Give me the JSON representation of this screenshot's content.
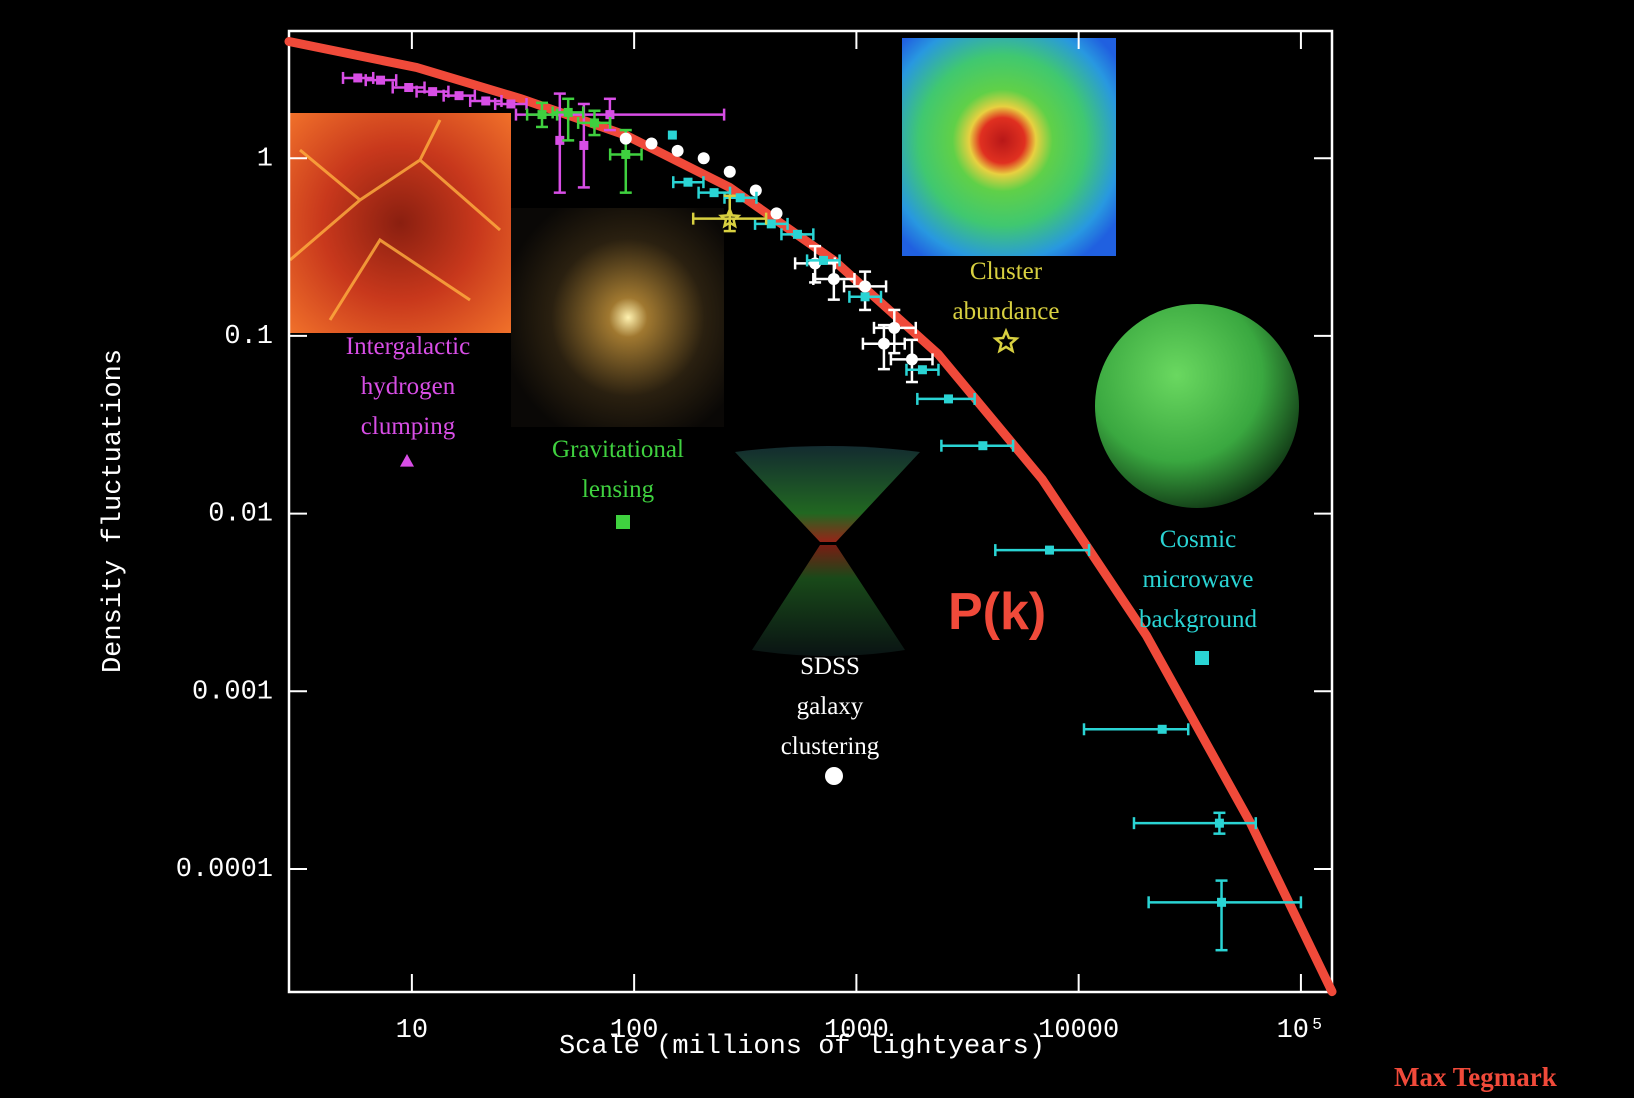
{
  "chart_data": {
    "type": "scatter",
    "x_label": "Scale (millions of lightyears)",
    "y_label": "Density fluctuations",
    "annotation": "Max Tegmark",
    "background": "#000000",
    "xscale": "log",
    "yscale": "log",
    "xlim": [
      2.8,
      138000
    ],
    "ylim": [
      2.03e-05,
      5.2
    ],
    "xticks": [
      10,
      100,
      1000,
      10000,
      {
        "value": 100000,
        "label": "10⁵"
      }
    ],
    "yticks": [
      1,
      0.1,
      0.01,
      0.001,
      0.0001
    ],
    "series": [
      {
        "name": "P(k)",
        "type": "line",
        "color": "#f04a3a",
        "x": [
          2.8,
          10.5,
          31,
          91.4,
          269,
          792,
          2333,
          6858,
          20180,
          59400,
          138000
        ],
        "values": [
          4.54,
          3.24,
          2.16,
          1.35,
          0.685,
          0.266,
          0.079,
          0.0156,
          0.00206,
          0.000181,
          2.04e-05
        ]
      },
      {
        "name": "Intergalactic hydrogen clumping",
        "marker": "triangle",
        "color": "#d84ee6",
        "x": [
          5.71,
          7.23,
          9.68,
          12.4,
          16.3,
          21.5,
          27.9,
          46.3,
          59.4,
          77.8
        ],
        "values": [
          2.83,
          2.75,
          2.5,
          2.37,
          2.25,
          2.1,
          2.02,
          1.26,
          1.18,
          1.76
        ],
        "x_low": [
          4.9,
          6.2,
          8.2,
          10.5,
          13.9,
          18.3,
          23.7,
          null,
          null,
          29.4
        ],
        "x_high": [
          6.7,
          8.5,
          11.4,
          14.6,
          19.2,
          25.3,
          32.8,
          null,
          null,
          254
        ],
        "y_low": [
          null,
          null,
          null,
          null,
          null,
          null,
          null,
          0.64,
          0.685,
          1.44
        ],
        "y_high": [
          null,
          null,
          null,
          null,
          null,
          null,
          null,
          2.31,
          2.02,
          2.16
        ]
      },
      {
        "name": "Gravitational lensing",
        "marker": "square",
        "color": "#3fd13f",
        "x": [
          38.5,
          50.5,
          66.3,
          91.7
        ],
        "values": [
          1.76,
          1.81,
          1.58,
          1.05
        ],
        "x_low": [
          33,
          43,
          56,
          78
        ],
        "x_high": [
          45,
          59,
          78,
          108
        ],
        "y_low": [
          1.5,
          1.26,
          1.35,
          0.64
        ],
        "y_high": [
          2.05,
          2.16,
          1.85,
          1.44
        ]
      },
      {
        "name": "SDSS galaxy clustering",
        "marker": "circle",
        "color": "#ffffff",
        "x": [
          91.7,
          119.7,
          156.9,
          205.6,
          269.3,
          352.7,
          437.2,
          651.9,
          791.6,
          1094,
          1481,
          1330,
          1778
        ],
        "values": [
          1.29,
          1.21,
          1.1,
          1.0,
          0.839,
          0.658,
          0.489,
          0.256,
          0.209,
          0.19,
          0.111,
          0.0904,
          0.0738
        ],
        "x_low": [
          null,
          null,
          null,
          null,
          null,
          null,
          null,
          530,
          640,
          880,
          1200,
          1070,
          1430
        ],
        "x_high": [
          null,
          null,
          null,
          null,
          null,
          null,
          null,
          800,
          980,
          1360,
          1850,
          1650,
          2200
        ],
        "y_low": [
          null,
          null,
          null,
          null,
          null,
          null,
          null,
          0.2,
          0.16,
          0.14,
          0.08,
          0.065,
          0.055
        ],
        "y_high": [
          null,
          null,
          null,
          null,
          null,
          null,
          null,
          0.32,
          0.26,
          0.23,
          0.14,
          0.115,
          0.095
        ]
      },
      {
        "name": "Cosmic microwave background",
        "marker": "square",
        "color": "#2ad4d4",
        "x": [
          148.6,
          174.7,
          228.9,
          300,
          414,
          543,
          711,
          1094,
          1982,
          2596,
          3707,
          7392,
          23760,
          42990,
          43940
        ],
        "values": [
          1.35,
          0.733,
          0.64,
          0.599,
          0.427,
          0.373,
          0.266,
          0.166,
          0.0645,
          0.0442,
          0.0241,
          0.00623,
          0.000611,
          0.000181,
          6.49e-05
        ],
        "x_low": [
          null,
          150,
          195,
          255,
          350,
          460,
          600,
          930,
          1680,
          1880,
          2412,
          4217,
          10570,
          17740,
          20650
        ],
        "x_high": [
          null,
          205,
          270,
          355,
          490,
          640,
          840,
          1290,
          2340,
          3404,
          5070,
          11140,
          31120,
          62660,
          100000
        ],
        "y_low": [
          null,
          null,
          null,
          null,
          null,
          null,
          null,
          null,
          null,
          null,
          null,
          null,
          null,
          0.000158,
          3.49e-05
        ],
        "y_high": [
          null,
          null,
          null,
          null,
          null,
          null,
          null,
          null,
          null,
          null,
          null,
          null,
          null,
          0.000207,
          8.6e-05
        ]
      },
      {
        "name": "Cluster abundance",
        "marker": "star",
        "color": "#d8d040",
        "x": [
          269.3
        ],
        "values": [
          0.457
        ],
        "x_low": [
          184.4
        ],
        "x_high": [
          392.6
        ],
        "y_low": [
          0.389
        ],
        "y_high": [
          0.615
        ]
      }
    ]
  }
}
